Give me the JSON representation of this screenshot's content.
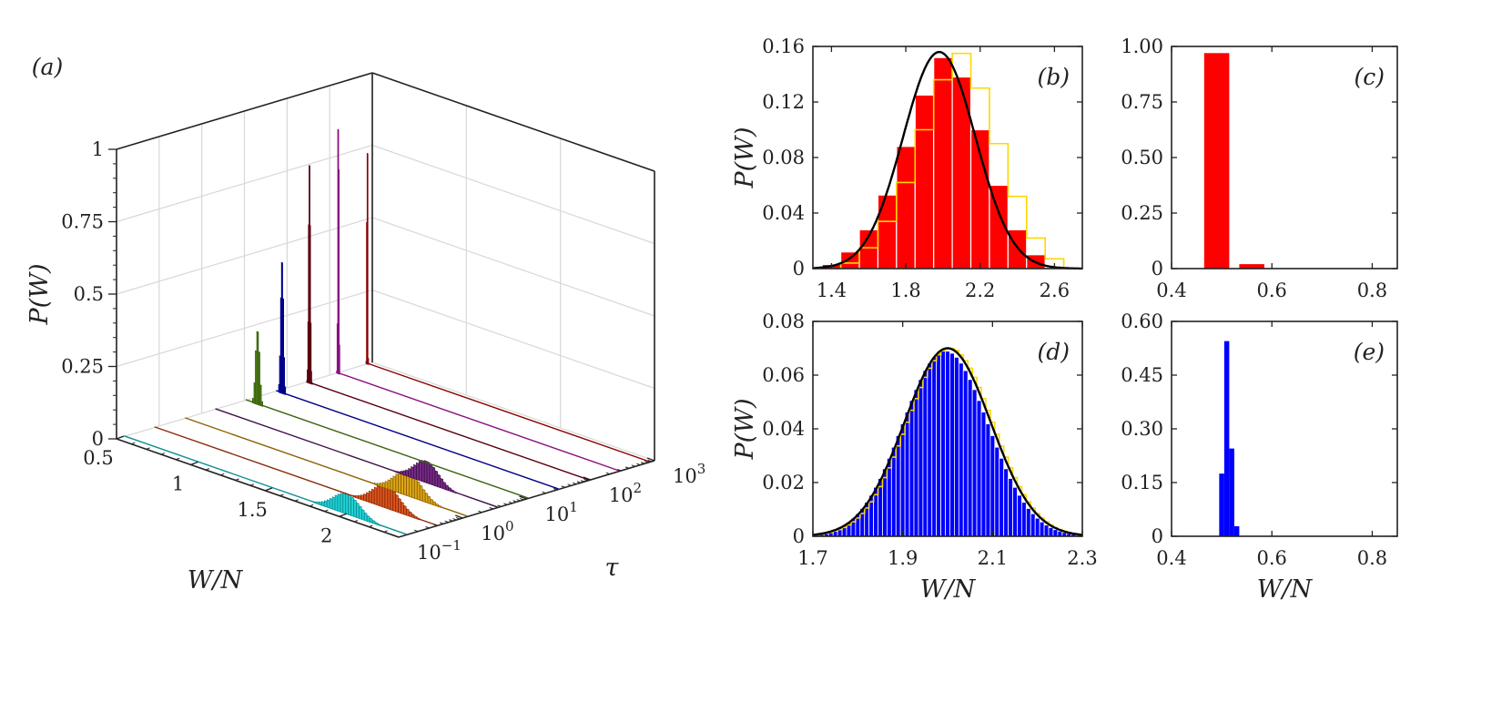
{
  "chart_data": [
    {
      "id": "a",
      "panel_label": "(a)",
      "type": "bar3d",
      "zlabel": "P(W)",
      "xlabel": "W/N",
      "ylabel": "τ",
      "x_ticks": [
        "0.5",
        "1",
        "1.5",
        "2"
      ],
      "x_range": [
        0.5,
        2.4
      ],
      "y_ticks": [
        {
          "base": "10",
          "exp": "−1"
        },
        {
          "base": "10",
          "exp": "0"
        },
        {
          "base": "10",
          "exp": "1"
        },
        {
          "base": "10",
          "exp": "2"
        },
        {
          "base": "10",
          "exp": "3"
        }
      ],
      "z_ticks": [
        "0",
        "0.25",
        "0.5",
        "0.75",
        "1"
      ],
      "zlim": [
        0,
        1
      ],
      "grid": true,
      "series": [
        {
          "color": "#1fd3d8",
          "dark": "#0a8f93",
          "mean": 2.0,
          "sd": 0.09,
          "peak": 0.07
        },
        {
          "color": "#e0561e",
          "dark": "#8a2a08",
          "mean": 2.06,
          "sd": 0.09,
          "peak": 0.08
        },
        {
          "color": "#e0a818",
          "dark": "#8a6100",
          "mean": 2.0,
          "sd": 0.09,
          "peak": 0.085
        },
        {
          "color": "#7a2c8a",
          "dark": "#3e0f48",
          "mean": 1.92,
          "sd": 0.08,
          "peak": 0.075
        },
        {
          "color": "#7ab32e",
          "dark": "#3c6410",
          "mean": 0.58,
          "sd": 0.012,
          "peak": 0.25
        },
        {
          "color": "#1a1ae0",
          "dark": "#00008a",
          "mean": 0.54,
          "sd": 0.008,
          "peak": 0.45
        },
        {
          "color": "#a0182e",
          "dark": "#5a0010",
          "mean": 0.52,
          "sd": 0.005,
          "peak": 0.75
        },
        {
          "color": "#e040d0",
          "dark": "#8a1080",
          "mean": 0.51,
          "sd": 0.003,
          "peak": 0.97
        },
        {
          "color": "#e8201a",
          "dark": "#8a0000",
          "mean": 0.5,
          "sd": 0.002,
          "peak": 1.0
        }
      ]
    },
    {
      "id": "b",
      "panel_label": "(b)",
      "type": "histogram",
      "ylabel": "P(W)",
      "xlabel": "",
      "xlim": [
        1.3,
        2.75
      ],
      "ylim": [
        0,
        0.16
      ],
      "x_ticks": [
        "1.4",
        "1.8",
        "2.2",
        "2.6"
      ],
      "y_ticks": [
        "0",
        "0.04",
        "0.08",
        "0.12",
        "0.16"
      ],
      "bar_color": "#ff0000",
      "bin_width": 0.1,
      "bars": [
        {
          "x": 1.4,
          "y": 0.003
        },
        {
          "x": 1.5,
          "y": 0.012
        },
        {
          "x": 1.6,
          "y": 0.028
        },
        {
          "x": 1.7,
          "y": 0.053
        },
        {
          "x": 1.8,
          "y": 0.088
        },
        {
          "x": 1.9,
          "y": 0.125
        },
        {
          "x": 2.0,
          "y": 0.152
        },
        {
          "x": 2.1,
          "y": 0.138
        },
        {
          "x": 2.2,
          "y": 0.1
        },
        {
          "x": 2.3,
          "y": 0.06
        },
        {
          "x": 2.4,
          "y": 0.028
        },
        {
          "x": 2.5,
          "y": 0.01
        }
      ],
      "step_color": "#ffd700",
      "step": [
        {
          "x": 1.5,
          "y": 0.004
        },
        {
          "x": 1.6,
          "y": 0.015
        },
        {
          "x": 1.7,
          "y": 0.034
        },
        {
          "x": 1.8,
          "y": 0.062
        },
        {
          "x": 1.9,
          "y": 0.1
        },
        {
          "x": 2.0,
          "y": 0.136
        },
        {
          "x": 2.1,
          "y": 0.155
        },
        {
          "x": 2.2,
          "y": 0.13
        },
        {
          "x": 2.3,
          "y": 0.09
        },
        {
          "x": 2.4,
          "y": 0.052
        },
        {
          "x": 2.5,
          "y": 0.022
        },
        {
          "x": 2.6,
          "y": 0.007
        }
      ],
      "curve_color": "#000000",
      "curve": {
        "mean": 1.98,
        "sd": 0.195,
        "peak": 0.156
      }
    },
    {
      "id": "c",
      "panel_label": "(c)",
      "type": "histogram",
      "ylabel": "",
      "xlabel": "",
      "xlim": [
        0.4,
        0.85
      ],
      "ylim": [
        0,
        1.0
      ],
      "x_ticks": [
        "0.4",
        "0.6",
        "0.8"
      ],
      "y_ticks": [
        "0",
        "0.25",
        "0.50",
        "0.75",
        "1.00"
      ],
      "bar_color": "#ff0000",
      "bin_width": 0.05,
      "bars": [
        {
          "x": 0.49,
          "y": 0.97
        },
        {
          "x": 0.56,
          "y": 0.02
        }
      ]
    },
    {
      "id": "d",
      "panel_label": "(d)",
      "type": "histogram",
      "ylabel": "P(W)",
      "xlabel": "W/N",
      "xlim": [
        1.7,
        2.3
      ],
      "ylim": [
        0,
        0.08
      ],
      "x_ticks": [
        "1.7",
        "1.9",
        "2.1",
        "2.3"
      ],
      "y_ticks": [
        "0",
        "0.02",
        "0.04",
        "0.06",
        "0.08"
      ],
      "bar_color": "#0000ff",
      "bin_width": 0.01,
      "bars_gaussian": {
        "mean": 1.995,
        "sd": 0.095,
        "peak": 0.069,
        "from": 1.72,
        "to": 2.28
      },
      "step_color": "#ffd700",
      "step_gaussian": {
        "mean": 2.005,
        "sd": 0.095,
        "peak": 0.07,
        "from": 1.72,
        "to": 2.29
      },
      "curve_color": "#000000",
      "curve": {
        "mean": 2.0,
        "sd": 0.096,
        "peak": 0.07
      }
    },
    {
      "id": "e",
      "panel_label": "(e)",
      "type": "histogram",
      "ylabel": "",
      "xlabel": "W/N",
      "xlim": [
        0.4,
        0.85
      ],
      "ylim": [
        0,
        0.6
      ],
      "x_ticks": [
        "0.4",
        "0.6",
        "0.8"
      ],
      "y_ticks": [
        "0",
        "0.15",
        "0.30",
        "0.45",
        "0.60"
      ],
      "bar_color": "#0000ff",
      "bin_width": 0.01,
      "bars": [
        {
          "x": 0.5,
          "y": 0.175
        },
        {
          "x": 0.51,
          "y": 0.545
        },
        {
          "x": 0.52,
          "y": 0.245
        },
        {
          "x": 0.53,
          "y": 0.028
        }
      ]
    }
  ]
}
